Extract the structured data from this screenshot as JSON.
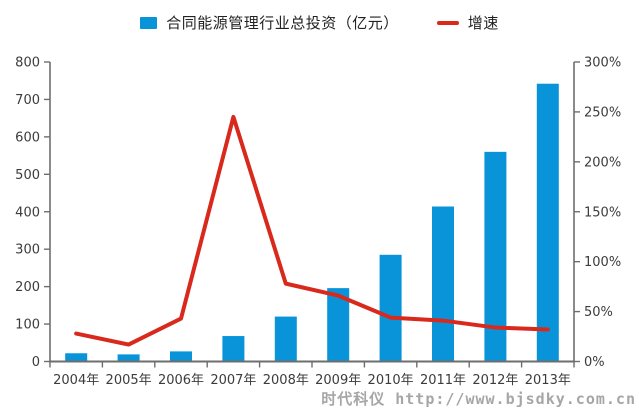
{
  "legend": {
    "bars_label": "合同能源管理行业总投资（亿元）",
    "line_label": "增速"
  },
  "watermark": "时代科仪 http://www.bjsdky.com.cn",
  "colors": {
    "bar": "#0994d9",
    "line": "#d8291c",
    "axis": "#6e6e6e",
    "tick_text": "#3c3c3c",
    "watermark": "#a6a6a6"
  },
  "chart_data": {
    "type": "bar",
    "subtype": "bar + line combo, dual y-axis",
    "title": "",
    "categories": [
      "2004年",
      "2005年",
      "2006年",
      "2007年",
      "2008年",
      "2009年",
      "2010年",
      "2011年",
      "2012年",
      "2013年"
    ],
    "series": [
      {
        "name": "合同能源管理行业总投资（亿元）",
        "type": "bar",
        "axis": "left",
        "unit": "亿元",
        "values": [
          22,
          19,
          27,
          68,
          120,
          196,
          285,
          414,
          560,
          742
        ]
      },
      {
        "name": "增速",
        "type": "line",
        "axis": "right",
        "unit": "%",
        "values": [
          28,
          17,
          43,
          245,
          78,
          66,
          44,
          41,
          34,
          32
        ]
      }
    ],
    "left_axis": {
      "min": 0,
      "max": 800,
      "step": 100,
      "labels": [
        "0",
        "100",
        "200",
        "300",
        "400",
        "500",
        "600",
        "700",
        "800"
      ]
    },
    "right_axis": {
      "min": 0,
      "max": 300,
      "step": 50,
      "labels": [
        "0%",
        "50%",
        "100%",
        "150%",
        "200%",
        "250%",
        "300%"
      ]
    },
    "grid": false,
    "legend_position": "top-center"
  }
}
